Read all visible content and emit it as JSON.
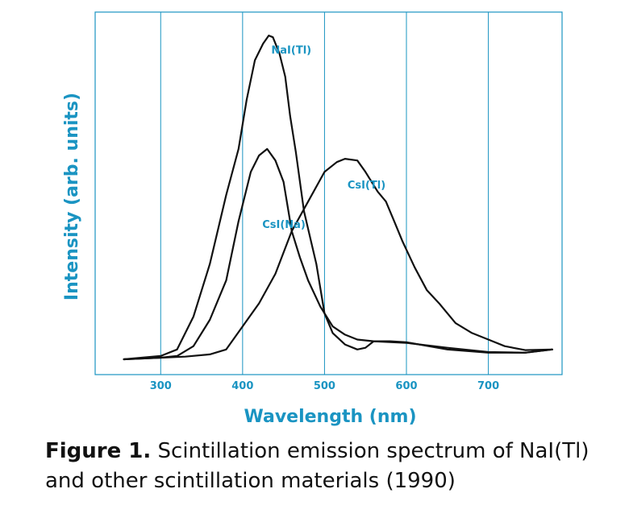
{
  "chart_data": {
    "type": "line",
    "xlabel": "Wavelength (nm)",
    "ylabel": "Intensity (arb. units)",
    "xlim": [
      220,
      790
    ],
    "ylim": [
      0,
      1
    ],
    "x_ticks": [
      300,
      400,
      500,
      600,
      700
    ],
    "grid": "vertical",
    "colors": {
      "axes": "#1a94c2",
      "curves": "#111111",
      "text": "#1a94c2"
    },
    "series": [
      {
        "name": "NaI(Tl)",
        "label_at": {
          "x": 435,
          "y": 0.93
        },
        "points": [
          [
            255,
            0.0
          ],
          [
            300,
            0.01
          ],
          [
            320,
            0.03
          ],
          [
            340,
            0.13
          ],
          [
            360,
            0.29
          ],
          [
            380,
            0.5
          ],
          [
            395,
            0.64
          ],
          [
            405,
            0.79
          ],
          [
            415,
            0.91
          ],
          [
            425,
            0.96
          ],
          [
            432,
            0.985
          ],
          [
            437,
            0.98
          ],
          [
            445,
            0.93
          ],
          [
            452,
            0.86
          ],
          [
            458,
            0.74
          ],
          [
            465,
            0.63
          ],
          [
            475,
            0.45
          ],
          [
            490,
            0.29
          ],
          [
            500,
            0.14
          ],
          [
            510,
            0.08
          ],
          [
            525,
            0.045
          ],
          [
            540,
            0.03
          ],
          [
            550,
            0.035
          ],
          [
            560,
            0.055
          ],
          [
            580,
            0.055
          ],
          [
            600,
            0.052
          ],
          [
            650,
            0.03
          ],
          [
            700,
            0.02
          ],
          [
            745,
            0.02
          ],
          [
            778,
            0.03
          ]
        ]
      },
      {
        "name": "CsI(Na)",
        "label_at": {
          "x": 424,
          "y": 0.4
        },
        "points": [
          [
            255,
            0.0
          ],
          [
            300,
            0.005
          ],
          [
            320,
            0.01
          ],
          [
            340,
            0.04
          ],
          [
            360,
            0.12
          ],
          [
            380,
            0.24
          ],
          [
            395,
            0.42
          ],
          [
            410,
            0.57
          ],
          [
            420,
            0.62
          ],
          [
            430,
            0.64
          ],
          [
            440,
            0.605
          ],
          [
            450,
            0.54
          ],
          [
            460,
            0.39
          ],
          [
            470,
            0.31
          ],
          [
            480,
            0.24
          ],
          [
            495,
            0.16
          ],
          [
            510,
            0.1
          ],
          [
            525,
            0.075
          ],
          [
            540,
            0.06
          ],
          [
            560,
            0.055
          ],
          [
            600,
            0.05
          ],
          [
            650,
            0.035
          ],
          [
            700,
            0.022
          ],
          [
            745,
            0.02
          ],
          [
            778,
            0.03
          ]
        ]
      },
      {
        "name": "CsI(Tl)",
        "label_at": {
          "x": 528,
          "y": 0.52
        },
        "points": [
          [
            255,
            0.0
          ],
          [
            300,
            0.005
          ],
          [
            330,
            0.008
          ],
          [
            360,
            0.015
          ],
          [
            380,
            0.03
          ],
          [
            400,
            0.1
          ],
          [
            420,
            0.17
          ],
          [
            440,
            0.26
          ],
          [
            460,
            0.39
          ],
          [
            480,
            0.48
          ],
          [
            500,
            0.57
          ],
          [
            515,
            0.6
          ],
          [
            525,
            0.61
          ],
          [
            540,
            0.605
          ],
          [
            550,
            0.57
          ],
          [
            565,
            0.51
          ],
          [
            575,
            0.48
          ],
          [
            585,
            0.42
          ],
          [
            595,
            0.36
          ],
          [
            610,
            0.28
          ],
          [
            625,
            0.21
          ],
          [
            640,
            0.17
          ],
          [
            660,
            0.11
          ],
          [
            680,
            0.08
          ],
          [
            700,
            0.06
          ],
          [
            720,
            0.04
          ],
          [
            745,
            0.028
          ],
          [
            778,
            0.03
          ]
        ]
      }
    ]
  },
  "caption": {
    "figure_label": "Figure 1.",
    "line1": "Scintillation emission spectrum of NaI(Tl)",
    "line2": "and other scintillation materials (1990)"
  }
}
